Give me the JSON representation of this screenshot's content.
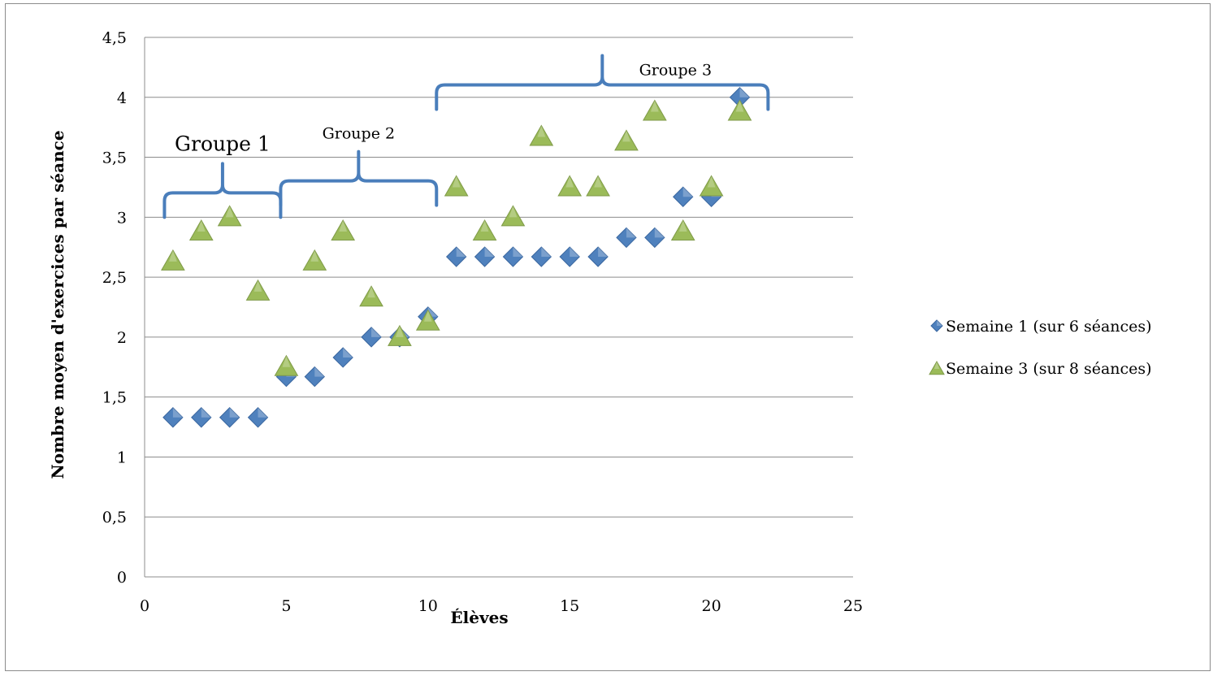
{
  "chart_data": {
    "type": "scatter",
    "xlabel": "Élèves",
    "ylabel": "Nombre moyen d'exercices par séance",
    "xlim": [
      0,
      25
    ],
    "ylim": [
      0,
      4.5
    ],
    "x_ticks": [
      "0",
      "5",
      "10",
      "15",
      "20",
      "25"
    ],
    "y_ticks": [
      "0",
      "0,5",
      "1",
      "1,5",
      "2",
      "2,5",
      "3",
      "3,5",
      "4",
      "4,5"
    ],
    "grid": "horizontal",
    "legend_position": "right",
    "series": [
      {
        "name": "Semaine 1 (sur 6 séances)",
        "marker": "diamond",
        "color": "#4f81bd",
        "x": [
          1,
          2,
          3,
          4,
          5,
          6,
          7,
          8,
          9,
          10,
          11,
          12,
          13,
          14,
          15,
          16,
          17,
          18,
          19,
          20,
          21
        ],
        "y": [
          1.33,
          1.33,
          1.33,
          1.33,
          1.67,
          1.67,
          1.83,
          2.0,
          2.0,
          2.17,
          2.67,
          2.67,
          2.67,
          2.67,
          2.67,
          2.67,
          2.83,
          2.83,
          3.17,
          3.17,
          4.0
        ]
      },
      {
        "name": "Semaine 3 (sur 8 séances)",
        "marker": "triangle",
        "color": "#9bbb59",
        "x": [
          1,
          2,
          3,
          4,
          5,
          6,
          7,
          8,
          9,
          10,
          11,
          12,
          13,
          14,
          15,
          16,
          17,
          18,
          19,
          20,
          21
        ],
        "y": [
          2.63,
          2.88,
          3.0,
          2.38,
          1.75,
          2.63,
          2.88,
          2.33,
          2.0,
          2.13,
          3.25,
          2.88,
          3.0,
          3.67,
          3.25,
          3.25,
          3.63,
          3.88,
          2.88,
          3.25,
          3.88
        ]
      }
    ],
    "annotations": [
      {
        "label": "Groupe 1",
        "x_from": 0.7,
        "x_to": 4.8,
        "y": 3.0
      },
      {
        "label": "Groupe 2",
        "x_from": 4.8,
        "x_to": 10.3,
        "y": 3.1
      },
      {
        "label": "Groupe 3",
        "x_from": 10.3,
        "x_to": 22.0,
        "y": 3.9
      }
    ],
    "bracket_color": "#4a7ebb"
  }
}
